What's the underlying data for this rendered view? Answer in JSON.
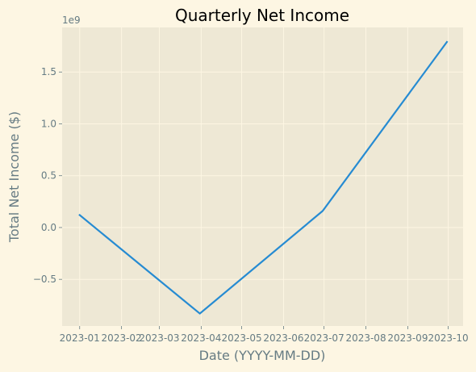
{
  "chart_data": {
    "type": "line",
    "title": "Quarterly Net Income",
    "xlabel": "Date (YYYY-MM-DD)",
    "ylabel": "Total Net Income ($)",
    "offset_text": "1e9",
    "x_tick_labels": [
      "2023-01",
      "2023-02",
      "2023-03",
      "2023-04",
      "2023-05",
      "2023-06",
      "2023-07",
      "2023-08",
      "2023-09",
      "2023-10"
    ],
    "y_tick_labels": [
      "−0.5",
      "0.0",
      "0.5",
      "1.0",
      "1.5"
    ],
    "y_ticks": [
      -0.5,
      0.0,
      0.5,
      1.0,
      1.5
    ],
    "ylim": [
      -0.95,
      1.93
    ],
    "xlim": [
      "2022-12-19",
      "2023-10-12"
    ],
    "grid": true,
    "series": [
      {
        "color": "#268bd2",
        "points": [
          {
            "x": "2023-01-01",
            "y": 0.12
          },
          {
            "x": "2023-03-31",
            "y": -0.83
          },
          {
            "x": "2023-06-30",
            "y": 0.16
          },
          {
            "x": "2023-09-30",
            "y": 1.79
          }
        ]
      }
    ]
  },
  "colors": {
    "figure_bg": "#fdf6e3",
    "axes_bg": "#eee8d5",
    "grid": "#fdf6e3",
    "tick": "#657b83"
  }
}
